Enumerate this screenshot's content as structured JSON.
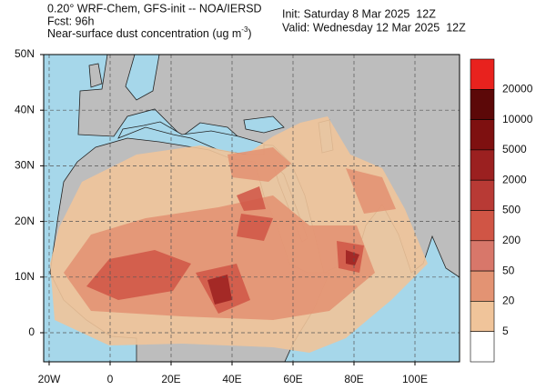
{
  "header": {
    "model": "0.20° WRF-Chem, GFS-init -- NOA/IERSD",
    "forecast": "Fcst: 96h",
    "field": "Near-surface dust concentration (ug m",
    "field_exponent": "-3",
    "field_close": ")",
    "init": "Init: Saturday 8 Mar 2025  12Z",
    "valid": "Valid: Wednesday 12 Mar 2025  12Z"
  },
  "map": {
    "lat_labels": [
      "50N",
      "40N",
      "30N",
      "20N",
      "10N",
      "0"
    ],
    "lon_labels": [
      "20W",
      "0",
      "20E",
      "40E",
      "60E",
      "80E",
      "100E"
    ]
  },
  "colorbar": {
    "colors": [
      "#e8221e",
      "#5c0808",
      "#7e1010",
      "#9b2020",
      "#b83a35",
      "#d05545",
      "#d8776a",
      "#e39373",
      "#f0c49a",
      "#ffffff"
    ],
    "labels": [
      "20000",
      "10000",
      "5000",
      "2000",
      "500",
      "200",
      "50",
      "20",
      "5"
    ]
  }
}
